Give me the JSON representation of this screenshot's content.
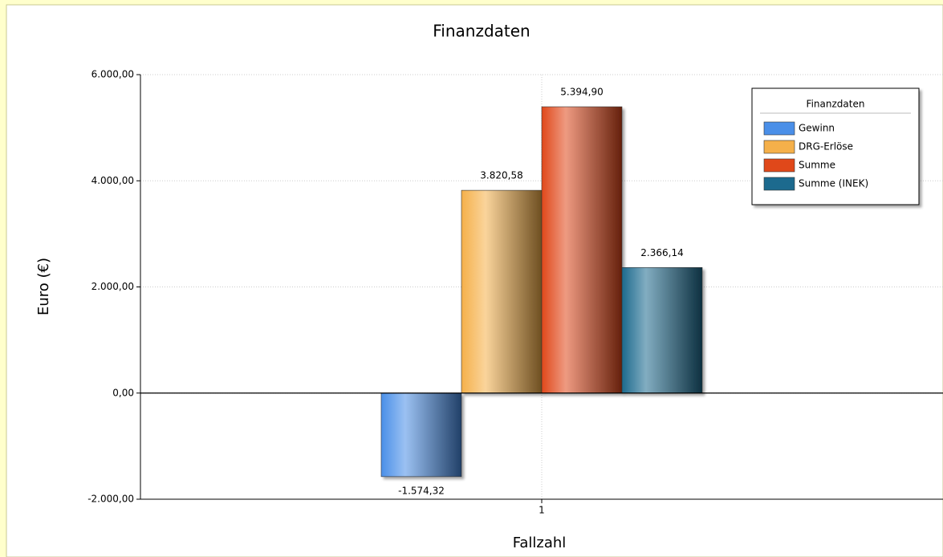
{
  "chart_data": {
    "type": "bar",
    "title": "Finanzdaten",
    "x_label": "Fallzahl",
    "y_label": "Euro (€)",
    "categories": [
      "1"
    ],
    "series": [
      {
        "name": "Gewinn",
        "color": "#4a8fe8",
        "values": [
          -1574.32
        ],
        "value_labels": [
          "-1.574,32"
        ]
      },
      {
        "name": "DRG-Erlöse",
        "color": "#f5b04a",
        "values": [
          3820.58
        ],
        "value_labels": [
          "3.820,58"
        ]
      },
      {
        "name": "Summe",
        "color": "#e0481a",
        "values": [
          5394.9
        ],
        "value_labels": [
          "5.394,90"
        ]
      },
      {
        "name": "Summe (INEK)",
        "color": "#1c6a8e",
        "values": [
          2366.14
        ],
        "value_labels": [
          "2.366,14"
        ]
      }
    ],
    "legend_title": "Finanzdaten",
    "legend": "top-right",
    "ylim": [
      -2000,
      6000
    ],
    "yticks": [
      {
        "value": -2000,
        "label": "-2.000,00"
      },
      {
        "value": 0,
        "label": "0,00"
      },
      {
        "value": 2000,
        "label": "2.000,00"
      },
      {
        "value": 4000,
        "label": "4.000,00"
      },
      {
        "value": 6000,
        "label": "6.000,00"
      }
    ],
    "grid": true
  }
}
